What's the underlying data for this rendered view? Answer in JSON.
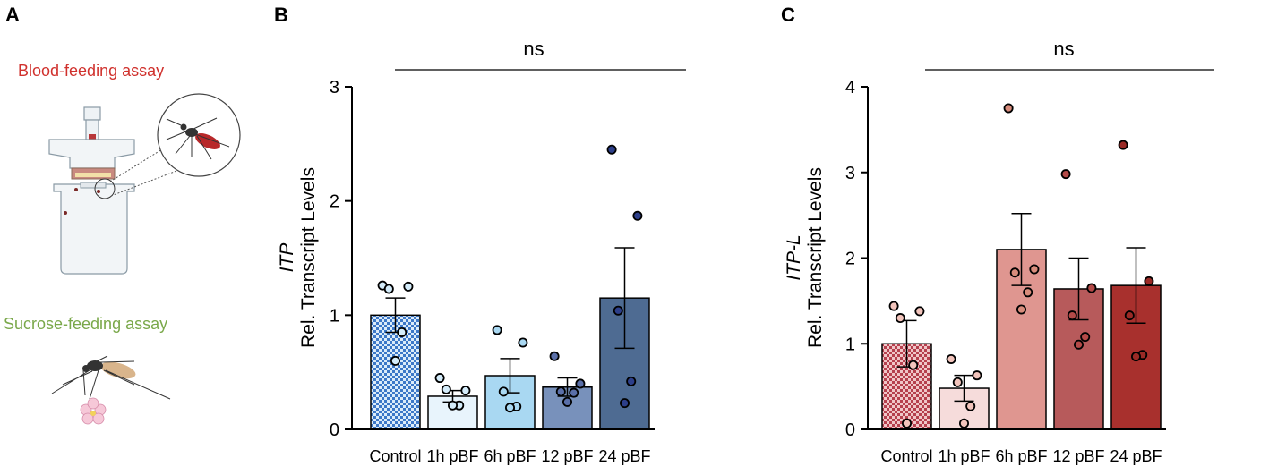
{
  "panel_labels": {
    "a": "A",
    "b": "B",
    "c": "C"
  },
  "panel_a": {
    "blood_feeding_title": "Blood-feeding assay",
    "sucrose_feeding_title": "Sucrose-feeding assay",
    "blood_color": "#d0312d",
    "sucrose_color": "#7aa84a"
  },
  "chart_data": [
    {
      "type": "bar",
      "panel": "B",
      "ylabel_gene": "ITP",
      "ylabel": "Rel. Transcript Levels",
      "significance": "ns",
      "categories": [
        "Control",
        "1h pBF",
        "6h pBF",
        "12 pBF",
        "24 pBF"
      ],
      "ylim": [
        0,
        3
      ],
      "yticks": [
        0,
        1,
        2,
        3
      ],
      "values": [
        1.0,
        0.29,
        0.47,
        0.37,
        1.15
      ],
      "sem": [
        0.15,
        0.05,
        0.15,
        0.08,
        0.44
      ],
      "points": [
        [
          1.26,
          1.25,
          1.23,
          0.85,
          0.6
        ],
        [
          0.45,
          0.34,
          0.35,
          0.21,
          0.21
        ],
        [
          0.87,
          0.76,
          0.33,
          0.2,
          0.19
        ],
        [
          0.64,
          0.4,
          0.33,
          0.32,
          0.24
        ],
        [
          2.45,
          1.87,
          1.04,
          0.42,
          0.23
        ]
      ],
      "bar_colors": [
        "#5b8fd4",
        "#e8f4fc",
        "#a9d8f2",
        "#7891bb",
        "#4e6b92"
      ],
      "bar_pattern": [
        "checkered",
        "solid",
        "solid",
        "solid",
        "solid"
      ],
      "point_colors": [
        "#d4ecfa",
        "#d4ecfa",
        "#a9d8f2",
        "#5a6fa8",
        "#2d3f8a"
      ]
    },
    {
      "type": "bar",
      "panel": "C",
      "ylabel_gene": "ITP-L",
      "ylabel": "Rel. Transcript Levels",
      "significance": "ns",
      "categories": [
        "Control",
        "1h pBF",
        "6h pBF",
        "12 pBF",
        "24 pBF"
      ],
      "ylim": [
        0,
        4
      ],
      "yticks": [
        0,
        1,
        2,
        3,
        4
      ],
      "values": [
        1.0,
        0.48,
        2.1,
        1.64,
        1.68
      ],
      "sem": [
        0.27,
        0.15,
        0.42,
        0.36,
        0.44
      ],
      "points": [
        [
          1.44,
          1.38,
          1.3,
          0.75,
          0.07
        ],
        [
          0.82,
          0.63,
          0.55,
          0.27,
          0.07
        ],
        [
          3.75,
          1.87,
          1.83,
          1.6,
          1.4
        ],
        [
          2.98,
          1.65,
          1.33,
          1.08,
          0.99
        ],
        [
          3.32,
          1.73,
          1.33,
          0.87,
          0.85
        ]
      ],
      "bar_colors": [
        "#c85a68",
        "#f6dcdb",
        "#df9690",
        "#b75a5b",
        "#a8302d"
      ],
      "bar_pattern": [
        "checkered",
        "solid",
        "solid",
        "solid",
        "solid"
      ],
      "point_colors": [
        "#f2c4bc",
        "#f2c4bc",
        "#d88c7c",
        "#b44a48",
        "#9a2a26"
      ]
    }
  ]
}
